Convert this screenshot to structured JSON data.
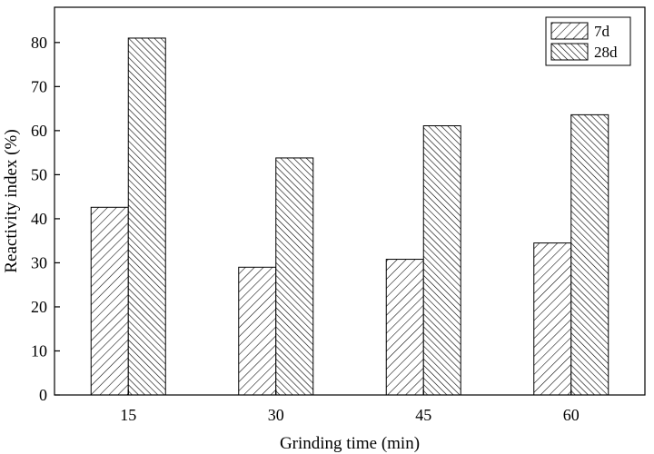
{
  "chart_data": {
    "type": "bar",
    "xlabel": "Grinding time (min)",
    "ylabel": "Reactivity index (%)",
    "categories": [
      "15",
      "30",
      "45",
      "60"
    ],
    "series": [
      {
        "name": "7d",
        "values": [
          42.6,
          29.0,
          30.8,
          34.5
        ],
        "hatch": "forward-diagonal"
      },
      {
        "name": "28d",
        "values": [
          81.0,
          53.8,
          61.1,
          63.6
        ],
        "hatch": "back-diagonal"
      }
    ],
    "ylim": [
      0,
      88
    ],
    "yticks": [
      "0",
      "10",
      "20",
      "30",
      "40",
      "50",
      "60",
      "70",
      "80"
    ],
    "grid": false,
    "legend_position": "top-right",
    "colors": {
      "bar_fill": "#ffffff",
      "stroke": "#000000"
    }
  }
}
